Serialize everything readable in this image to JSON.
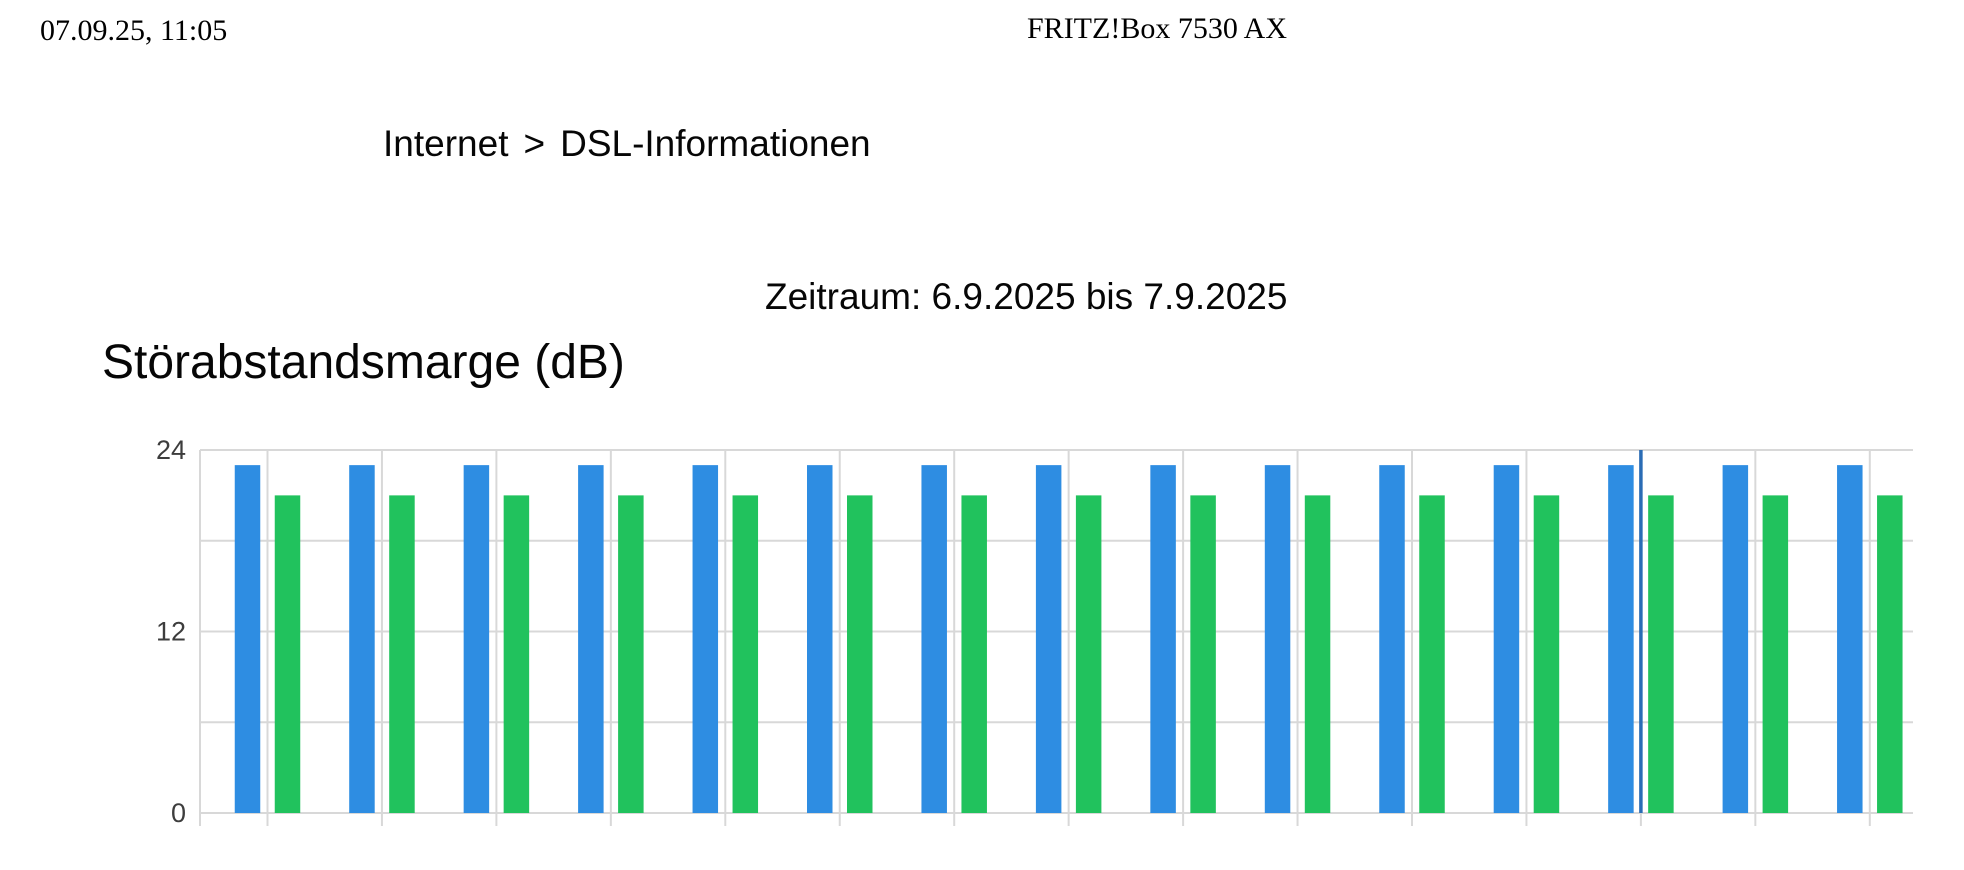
{
  "print_header": {
    "datetime": "07.09.25, 11:05",
    "device_title": "FRITZ!Box 7530 AX"
  },
  "breadcrumb": {
    "section": "Internet",
    "separator": ">",
    "page": "DSL-Informationen"
  },
  "period_line": "Zeitraum: 6.9.2025 bis 7.9.2025",
  "chart_data": {
    "type": "bar",
    "title": "Störabstandsmarge (dB)",
    "ylim": [
      0,
      24
    ],
    "ytick_labels": [
      "24",
      "12",
      "0"
    ],
    "ytick_values": [
      24,
      12,
      0
    ],
    "gridlines_db": [
      24,
      18,
      12,
      6,
      0
    ],
    "grid": true,
    "legend": "none",
    "categories_count": 15,
    "series": [
      {
        "name": "series-blue",
        "color": "#2e8de2",
        "values": [
          23,
          23,
          23,
          23,
          23,
          23,
          23,
          23,
          23,
          23,
          23,
          23,
          23,
          23,
          23
        ]
      },
      {
        "name": "series-green",
        "color": "#21c25d",
        "values": [
          21,
          21,
          21,
          21,
          21,
          21,
          21,
          21,
          21,
          21,
          21,
          21,
          21,
          21,
          21
        ]
      }
    ],
    "time_marker": {
      "pair_index": 12,
      "color": "#2a6cb5"
    },
    "grid_color": "#d8d8d8",
    "tick_label_color": "#3d3d3d"
  }
}
